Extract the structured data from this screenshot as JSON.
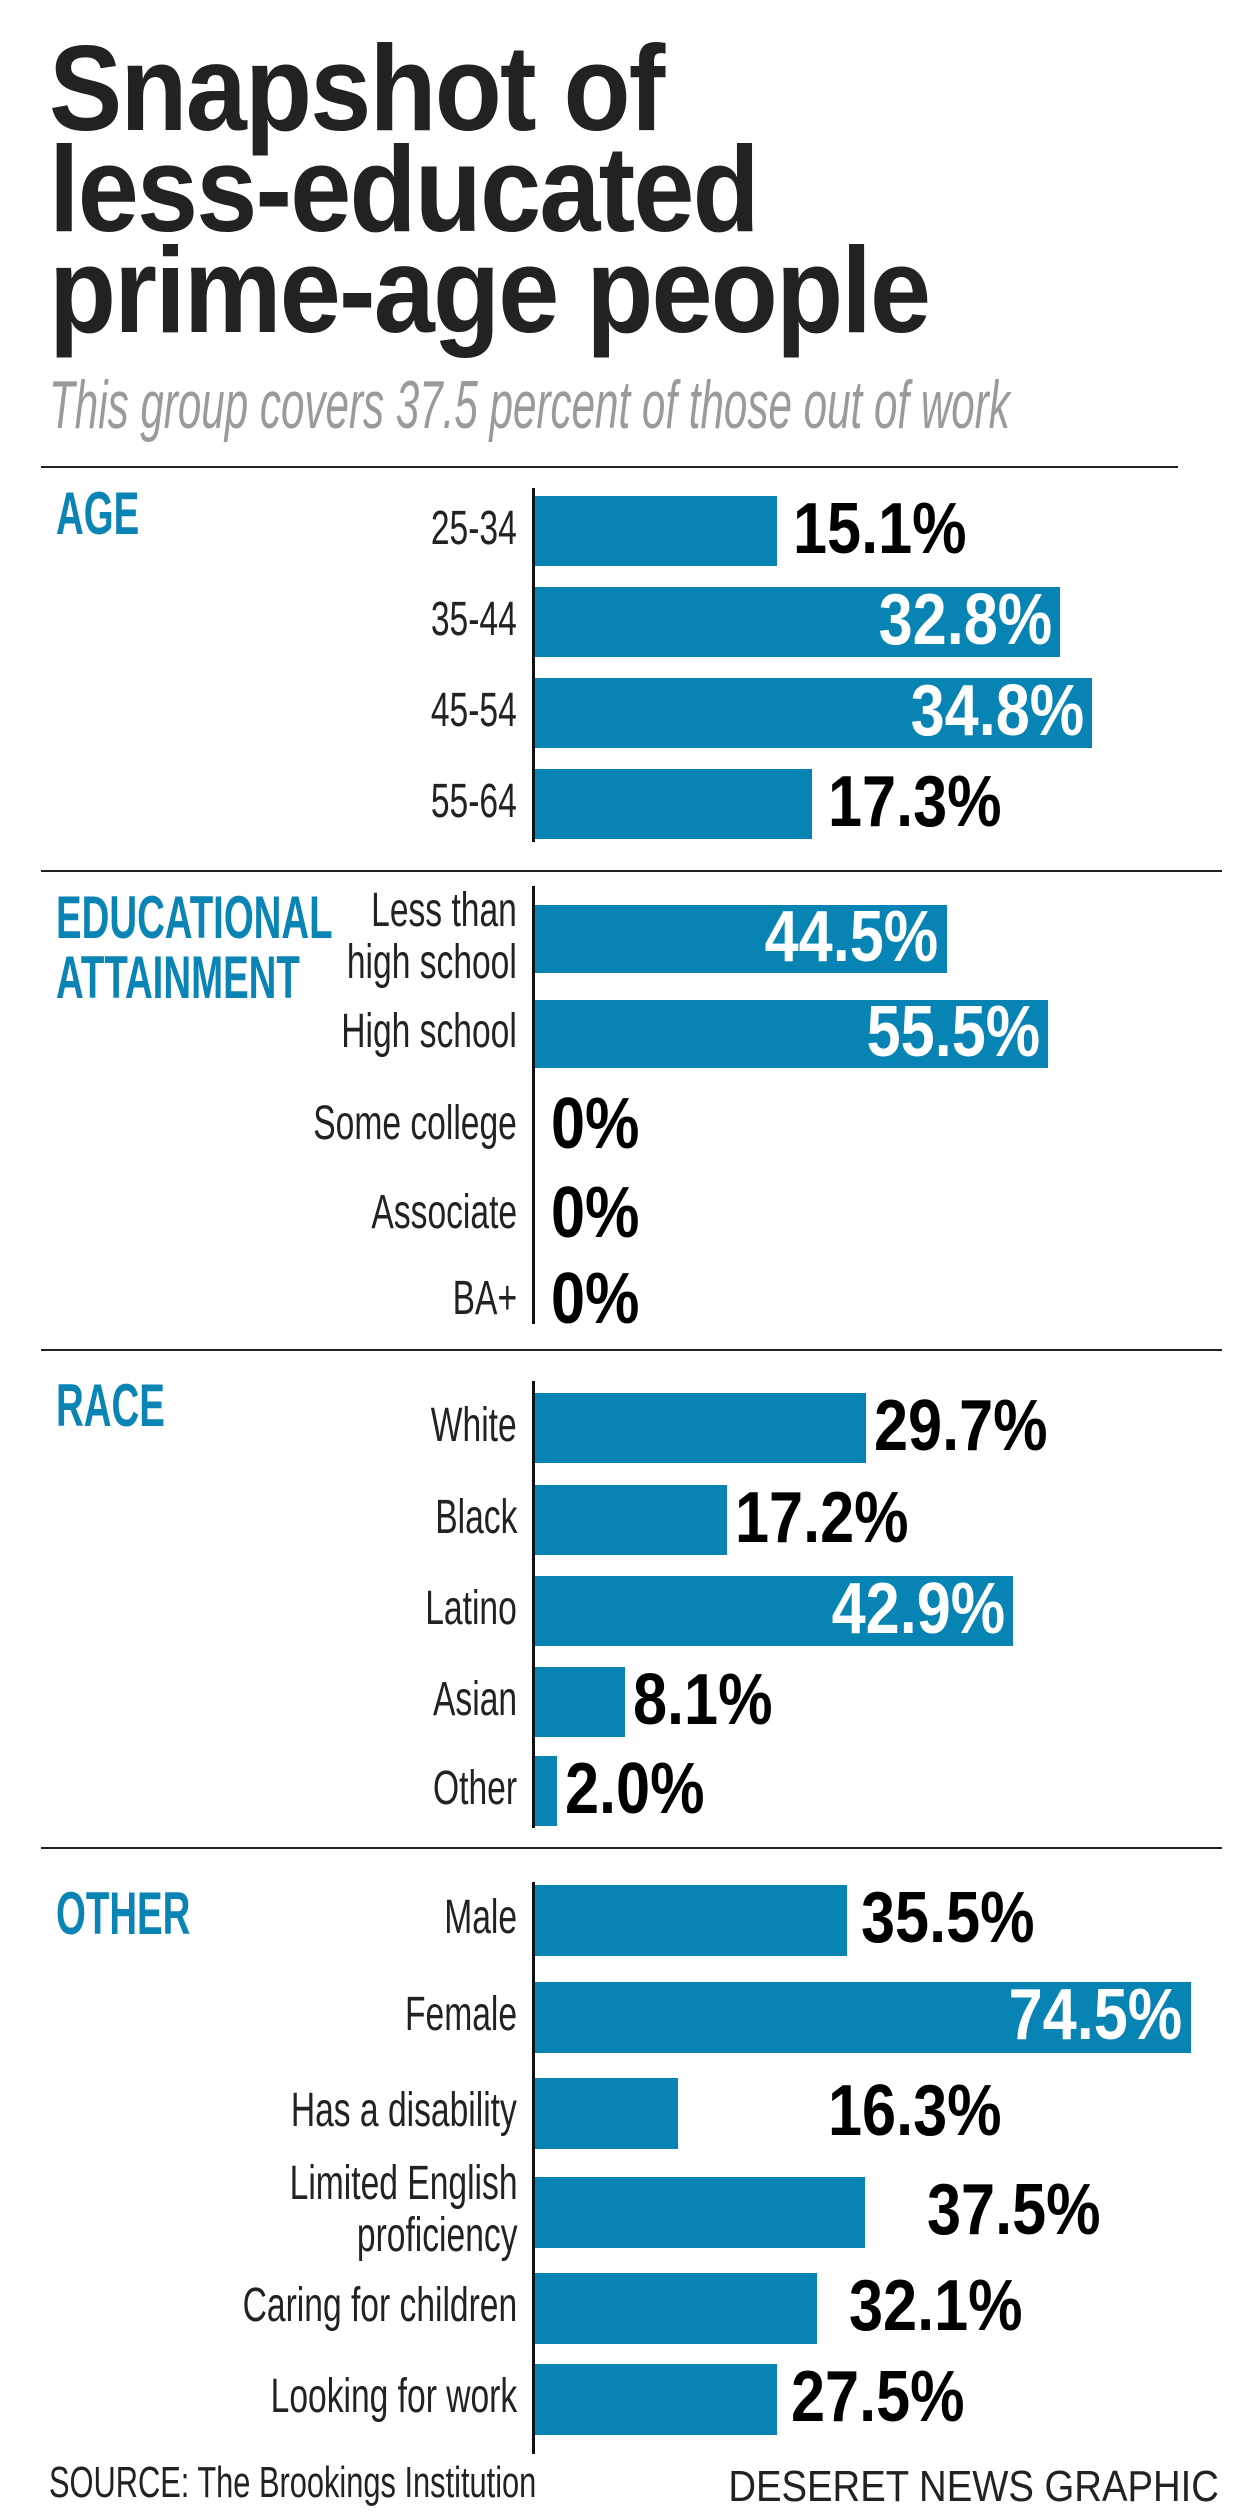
{
  "title_lines": [
    "Snapshot of",
    "less-educated",
    "prime-age people"
  ],
  "subtitle": "This group covers 37.5 percent of those out of work",
  "colors": {
    "bar": "#0784b4",
    "section_label": "#0a84b4",
    "title": "#222222",
    "subtitle": "#9a9a9a"
  },
  "chart_data": [
    {
      "type": "bar",
      "orientation": "horizontal",
      "title": "AGE",
      "unit": "%",
      "categories": [
        "25-34",
        "35-44",
        "45-54",
        "55-64"
      ],
      "values": [
        15.1,
        32.8,
        34.8,
        17.3
      ],
      "labels": [
        "15.1%",
        "32.8%",
        "34.8%",
        "17.3%"
      ]
    },
    {
      "type": "bar",
      "orientation": "horizontal",
      "title": "EDUCATIONAL\nATTAINMENT",
      "unit": "%",
      "categories": [
        "Less than\nhigh school",
        "High school",
        "Some college",
        "Associate",
        "BA+"
      ],
      "values": [
        44.5,
        55.5,
        0,
        0,
        0
      ],
      "labels": [
        "44.5%",
        "55.5%",
        "0%",
        "0%",
        "0%"
      ]
    },
    {
      "type": "bar",
      "orientation": "horizontal",
      "title": "RACE",
      "unit": "%",
      "categories": [
        "White",
        "Black",
        "Latino",
        "Asian",
        "Other"
      ],
      "values": [
        29.7,
        17.2,
        42.9,
        8.1,
        2.0
      ],
      "labels": [
        "29.7%",
        "17.2%",
        "42.9%",
        "8.1%",
        "2.0%"
      ]
    },
    {
      "type": "bar",
      "orientation": "horizontal",
      "title": "OTHER",
      "unit": "%",
      "categories": [
        "Male",
        "Female",
        "Has a disability",
        "Limited English\nproficiency",
        "Caring for children",
        "Looking for work"
      ],
      "values": [
        35.5,
        74.5,
        16.3,
        37.5,
        32.1,
        27.5
      ],
      "labels": [
        "35.5%",
        "74.5%",
        "16.3%",
        "37.5%",
        "32.1%",
        "27.5%"
      ]
    }
  ],
  "footer": {
    "source": "SOURCE: The Brookings Institution",
    "credit": "DESERET NEWS GRAPHIC"
  }
}
